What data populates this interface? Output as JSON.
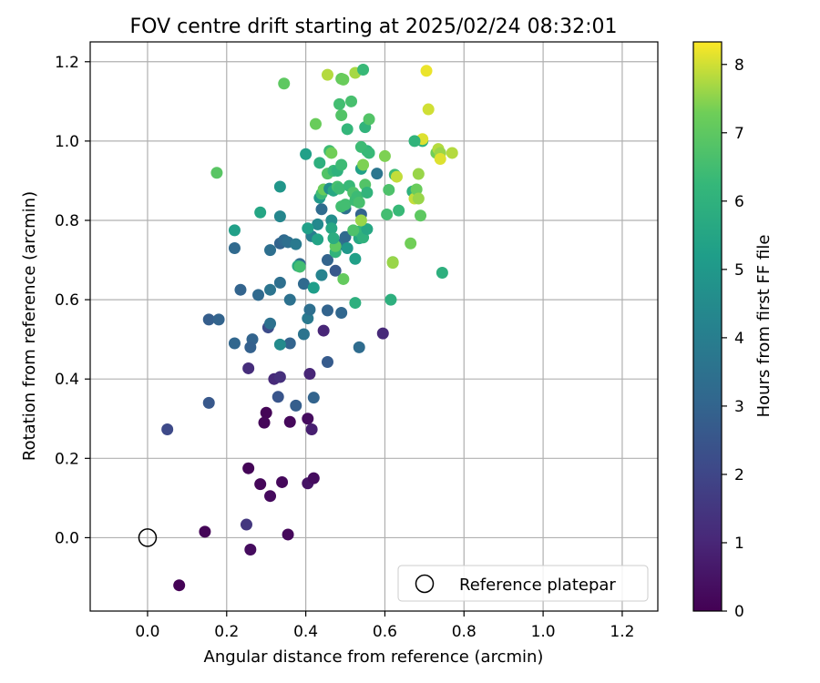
{
  "chart_data": {
    "type": "scatter",
    "title": "FOV centre drift starting at 2025/02/24 08:32:01",
    "xlabel": "Angular distance from reference (arcmin)",
    "ylabel": "Rotation from reference (arcmin)",
    "xlim": [
      -0.145,
      1.29
    ],
    "ylim": [
      -0.185,
      1.25
    ],
    "xticks": [
      0.0,
      0.2,
      0.4,
      0.6,
      0.8,
      1.0,
      1.2
    ],
    "yticks": [
      0.0,
      0.2,
      0.4,
      0.6,
      0.8,
      1.0,
      1.2
    ],
    "xtick_labels": [
      "0.0",
      "0.2",
      "0.4",
      "0.6",
      "0.8",
      "1.0",
      "1.2"
    ],
    "ytick_labels": [
      "0.0",
      "0.2",
      "0.4",
      "0.6",
      "0.8",
      "1.0",
      "1.2"
    ],
    "grid": true,
    "colormap": "viridis",
    "colorbar": {
      "label": "Hours from first FF file",
      "min": 0,
      "max": 8.33,
      "ticks": [
        0,
        1,
        2,
        3,
        4,
        5,
        6,
        7,
        8
      ],
      "tick_labels": [
        "0",
        "1",
        "2",
        "3",
        "4",
        "5",
        "6",
        "7",
        "8"
      ]
    },
    "reference": {
      "x": 0.0,
      "y": 0.0
    },
    "legend": {
      "label": "Reference platepar",
      "position": "lower-right"
    },
    "points": [
      {
        "x": 0.08,
        "y": -0.12,
        "t": 0.05
      },
      {
        "x": 0.145,
        "y": 0.015,
        "t": 0.1
      },
      {
        "x": 0.26,
        "y": -0.03,
        "t": 0.3
      },
      {
        "x": 0.355,
        "y": 0.008,
        "t": 0.2
      },
      {
        "x": 0.255,
        "y": 0.175,
        "t": 0.1
      },
      {
        "x": 0.285,
        "y": 0.135,
        "t": 0.15
      },
      {
        "x": 0.31,
        "y": 0.105,
        "t": 0.25
      },
      {
        "x": 0.34,
        "y": 0.14,
        "t": 0.2
      },
      {
        "x": 0.405,
        "y": 0.137,
        "t": 0.5
      },
      {
        "x": 0.42,
        "y": 0.15,
        "t": 0.3
      },
      {
        "x": 0.3,
        "y": 0.315,
        "t": 0.1
      },
      {
        "x": 0.295,
        "y": 0.29,
        "t": 0.15
      },
      {
        "x": 0.36,
        "y": 0.292,
        "t": 0.2
      },
      {
        "x": 0.405,
        "y": 0.3,
        "t": 0.3
      },
      {
        "x": 0.415,
        "y": 0.273,
        "t": 0.8
      },
      {
        "x": 0.255,
        "y": 0.427,
        "t": 1.2
      },
      {
        "x": 0.32,
        "y": 0.4,
        "t": 1.1
      },
      {
        "x": 0.335,
        "y": 0.405,
        "t": 1.3
      },
      {
        "x": 0.41,
        "y": 0.413,
        "t": 1.0
      },
      {
        "x": 0.445,
        "y": 0.522,
        "t": 1.0
      },
      {
        "x": 0.595,
        "y": 0.515,
        "t": 1.1
      },
      {
        "x": 0.25,
        "y": 0.033,
        "t": 1.5
      },
      {
        "x": 0.05,
        "y": 0.273,
        "t": 2.1
      },
      {
        "x": 0.155,
        "y": 0.34,
        "t": 2.6
      },
      {
        "x": 0.155,
        "y": 0.55,
        "t": 2.8
      },
      {
        "x": 0.18,
        "y": 0.55,
        "t": 3.0
      },
      {
        "x": 0.22,
        "y": 0.49,
        "t": 3.1
      },
      {
        "x": 0.265,
        "y": 0.5,
        "t": 3.0
      },
      {
        "x": 0.26,
        "y": 0.48,
        "t": 2.9
      },
      {
        "x": 0.305,
        "y": 0.53,
        "t": 2.2
      },
      {
        "x": 0.31,
        "y": 0.54,
        "t": 3.5
      },
      {
        "x": 0.33,
        "y": 0.355,
        "t": 2.5
      },
      {
        "x": 0.375,
        "y": 0.333,
        "t": 2.8
      },
      {
        "x": 0.42,
        "y": 0.353,
        "t": 3.0
      },
      {
        "x": 0.36,
        "y": 0.49,
        "t": 3.0
      },
      {
        "x": 0.335,
        "y": 0.487,
        "t": 4.5
      },
      {
        "x": 0.395,
        "y": 0.513,
        "t": 3.6
      },
      {
        "x": 0.405,
        "y": 0.553,
        "t": 3.8
      },
      {
        "x": 0.41,
        "y": 0.575,
        "t": 3.4
      },
      {
        "x": 0.455,
        "y": 0.443,
        "t": 2.7
      },
      {
        "x": 0.455,
        "y": 0.573,
        "t": 3.0
      },
      {
        "x": 0.49,
        "y": 0.567,
        "t": 3.1
      },
      {
        "x": 0.535,
        "y": 0.48,
        "t": 3.3
      },
      {
        "x": 0.235,
        "y": 0.625,
        "t": 3.0
      },
      {
        "x": 0.28,
        "y": 0.612,
        "t": 3.2
      },
      {
        "x": 0.31,
        "y": 0.625,
        "t": 3.6
      },
      {
        "x": 0.335,
        "y": 0.643,
        "t": 3.4
      },
      {
        "x": 0.36,
        "y": 0.6,
        "t": 3.5
      },
      {
        "x": 0.385,
        "y": 0.69,
        "t": 3.2
      },
      {
        "x": 0.395,
        "y": 0.64,
        "t": 3.2
      },
      {
        "x": 0.44,
        "y": 0.662,
        "t": 4.2
      },
      {
        "x": 0.455,
        "y": 0.7,
        "t": 3.0
      },
      {
        "x": 0.475,
        "y": 0.673,
        "t": 2.6
      },
      {
        "x": 0.22,
        "y": 0.73,
        "t": 3.2
      },
      {
        "x": 0.31,
        "y": 0.725,
        "t": 3.4
      },
      {
        "x": 0.335,
        "y": 0.742,
        "t": 3.0
      },
      {
        "x": 0.345,
        "y": 0.75,
        "t": 3.2
      },
      {
        "x": 0.355,
        "y": 0.745,
        "t": 3.4
      },
      {
        "x": 0.375,
        "y": 0.74,
        "t": 3.8
      },
      {
        "x": 0.335,
        "y": 0.81,
        "t": 4.3
      },
      {
        "x": 0.415,
        "y": 0.76,
        "t": 4.0
      },
      {
        "x": 0.44,
        "y": 0.828,
        "t": 3.3
      },
      {
        "x": 0.49,
        "y": 0.74,
        "t": 3.6
      },
      {
        "x": 0.5,
        "y": 0.758,
        "t": 3.2
      },
      {
        "x": 0.54,
        "y": 0.815,
        "t": 3.0
      },
      {
        "x": 0.5,
        "y": 0.83,
        "t": 3.5
      },
      {
        "x": 0.58,
        "y": 0.918,
        "t": 3.7
      },
      {
        "x": 0.22,
        "y": 0.775,
        "t": 5.3
      },
      {
        "x": 0.285,
        "y": 0.82,
        "t": 5.5
      },
      {
        "x": 0.335,
        "y": 0.885,
        "t": 4.9
      },
      {
        "x": 0.38,
        "y": 0.685,
        "t": 5.7
      },
      {
        "x": 0.385,
        "y": 0.683,
        "t": 6.5
      },
      {
        "x": 0.42,
        "y": 0.63,
        "t": 5.2
      },
      {
        "x": 0.43,
        "y": 0.79,
        "t": 4.4
      },
      {
        "x": 0.405,
        "y": 0.78,
        "t": 5.3
      },
      {
        "x": 0.43,
        "y": 0.752,
        "t": 5.4
      },
      {
        "x": 0.465,
        "y": 0.8,
        "t": 4.6
      },
      {
        "x": 0.465,
        "y": 0.78,
        "t": 5.6
      },
      {
        "x": 0.475,
        "y": 0.72,
        "t": 6.1
      },
      {
        "x": 0.475,
        "y": 0.735,
        "t": 7.0
      },
      {
        "x": 0.495,
        "y": 0.652,
        "t": 7.1
      },
      {
        "x": 0.525,
        "y": 0.703,
        "t": 5.3
      },
      {
        "x": 0.525,
        "y": 0.592,
        "t": 5.9
      },
      {
        "x": 0.505,
        "y": 0.73,
        "t": 5.0
      },
      {
        "x": 0.47,
        "y": 0.755,
        "t": 5.8
      },
      {
        "x": 0.535,
        "y": 0.755,
        "t": 5.6
      },
      {
        "x": 0.535,
        "y": 0.772,
        "t": 6.2
      },
      {
        "x": 0.545,
        "y": 0.757,
        "t": 6.0
      },
      {
        "x": 0.555,
        "y": 0.778,
        "t": 5.6
      },
      {
        "x": 0.54,
        "y": 0.8,
        "t": 7.6
      },
      {
        "x": 0.52,
        "y": 0.775,
        "t": 6.7
      },
      {
        "x": 0.615,
        "y": 0.6,
        "t": 5.9
      },
      {
        "x": 0.62,
        "y": 0.695,
        "t": 7.5
      },
      {
        "x": 0.62,
        "y": 0.693,
        "t": 7.6
      },
      {
        "x": 0.665,
        "y": 0.742,
        "t": 7.3
      },
      {
        "x": 0.745,
        "y": 0.668,
        "t": 5.9
      },
      {
        "x": 0.4,
        "y": 0.967,
        "t": 5.3
      },
      {
        "x": 0.435,
        "y": 0.857,
        "t": 5.0
      },
      {
        "x": 0.44,
        "y": 0.867,
        "t": 6.4
      },
      {
        "x": 0.445,
        "y": 0.878,
        "t": 7.2
      },
      {
        "x": 0.435,
        "y": 0.945,
        "t": 5.9
      },
      {
        "x": 0.455,
        "y": 0.918,
        "t": 6.8
      },
      {
        "x": 0.46,
        "y": 0.975,
        "t": 6.4
      },
      {
        "x": 0.465,
        "y": 0.97,
        "t": 7.3
      },
      {
        "x": 0.46,
        "y": 0.88,
        "t": 4.6
      },
      {
        "x": 0.47,
        "y": 0.875,
        "t": 5.6
      },
      {
        "x": 0.48,
        "y": 0.885,
        "t": 6.6
      },
      {
        "x": 0.485,
        "y": 0.88,
        "t": 6.4
      },
      {
        "x": 0.47,
        "y": 0.925,
        "t": 6.3
      },
      {
        "x": 0.48,
        "y": 0.925,
        "t": 6.0
      },
      {
        "x": 0.49,
        "y": 0.94,
        "t": 6.4
      },
      {
        "x": 0.49,
        "y": 0.835,
        "t": 6.5
      },
      {
        "x": 0.5,
        "y": 0.84,
        "t": 6.5
      },
      {
        "x": 0.51,
        "y": 0.887,
        "t": 6.3
      },
      {
        "x": 0.52,
        "y": 0.87,
        "t": 6.7
      },
      {
        "x": 0.525,
        "y": 0.85,
        "t": 6.4
      },
      {
        "x": 0.53,
        "y": 0.86,
        "t": 6.4
      },
      {
        "x": 0.535,
        "y": 0.845,
        "t": 6.6
      },
      {
        "x": 0.54,
        "y": 0.93,
        "t": 5.3
      },
      {
        "x": 0.545,
        "y": 0.94,
        "t": 7.4
      },
      {
        "x": 0.55,
        "y": 0.89,
        "t": 6.8
      },
      {
        "x": 0.555,
        "y": 0.87,
        "t": 6.1
      },
      {
        "x": 0.555,
        "y": 0.975,
        "t": 6.0
      },
      {
        "x": 0.54,
        "y": 0.985,
        "t": 6.4
      },
      {
        "x": 0.56,
        "y": 0.97,
        "t": 6.3
      },
      {
        "x": 0.505,
        "y": 1.03,
        "t": 6.2
      },
      {
        "x": 0.55,
        "y": 1.035,
        "t": 6.1
      },
      {
        "x": 0.56,
        "y": 1.055,
        "t": 6.8
      },
      {
        "x": 0.49,
        "y": 1.065,
        "t": 6.8
      },
      {
        "x": 0.485,
        "y": 1.093,
        "t": 6.5
      },
      {
        "x": 0.515,
        "y": 1.1,
        "t": 6.6
      },
      {
        "x": 0.425,
        "y": 1.043,
        "t": 7.2
      },
      {
        "x": 0.49,
        "y": 1.157,
        "t": 7.1
      },
      {
        "x": 0.495,
        "y": 1.155,
        "t": 7.2
      },
      {
        "x": 0.525,
        "y": 1.172,
        "t": 7.7
      },
      {
        "x": 0.545,
        "y": 1.18,
        "t": 6.3
      },
      {
        "x": 0.455,
        "y": 1.167,
        "t": 7.8
      },
      {
        "x": 0.345,
        "y": 1.145,
        "t": 7.0
      },
      {
        "x": 0.175,
        "y": 0.92,
        "t": 6.9
      },
      {
        "x": 0.6,
        "y": 0.962,
        "t": 7.4
      },
      {
        "x": 0.605,
        "y": 0.815,
        "t": 6.5
      },
      {
        "x": 0.61,
        "y": 0.877,
        "t": 6.7
      },
      {
        "x": 0.625,
        "y": 0.915,
        "t": 6.4
      },
      {
        "x": 0.63,
        "y": 0.91,
        "t": 7.9
      },
      {
        "x": 0.635,
        "y": 0.825,
        "t": 6.3
      },
      {
        "x": 0.67,
        "y": 0.873,
        "t": 6.0
      },
      {
        "x": 0.675,
        "y": 0.855,
        "t": 7.9
      },
      {
        "x": 0.68,
        "y": 0.878,
        "t": 7.2
      },
      {
        "x": 0.685,
        "y": 0.855,
        "t": 7.6
      },
      {
        "x": 0.685,
        "y": 0.917,
        "t": 7.6
      },
      {
        "x": 0.69,
        "y": 0.812,
        "t": 7.0
      },
      {
        "x": 0.695,
        "y": 1.0,
        "t": 6.0
      },
      {
        "x": 0.695,
        "y": 1.005,
        "t": 8.1
      },
      {
        "x": 0.705,
        "y": 1.177,
        "t": 8.2
      },
      {
        "x": 0.71,
        "y": 1.08,
        "t": 8.0
      },
      {
        "x": 0.675,
        "y": 1.0,
        "t": 6.1
      },
      {
        "x": 0.73,
        "y": 0.97,
        "t": 7.3
      },
      {
        "x": 0.735,
        "y": 0.98,
        "t": 7.8
      },
      {
        "x": 0.74,
        "y": 0.97,
        "t": 7.6
      },
      {
        "x": 0.74,
        "y": 0.955,
        "t": 8.1
      },
      {
        "x": 0.77,
        "y": 0.97,
        "t": 7.8
      }
    ]
  }
}
